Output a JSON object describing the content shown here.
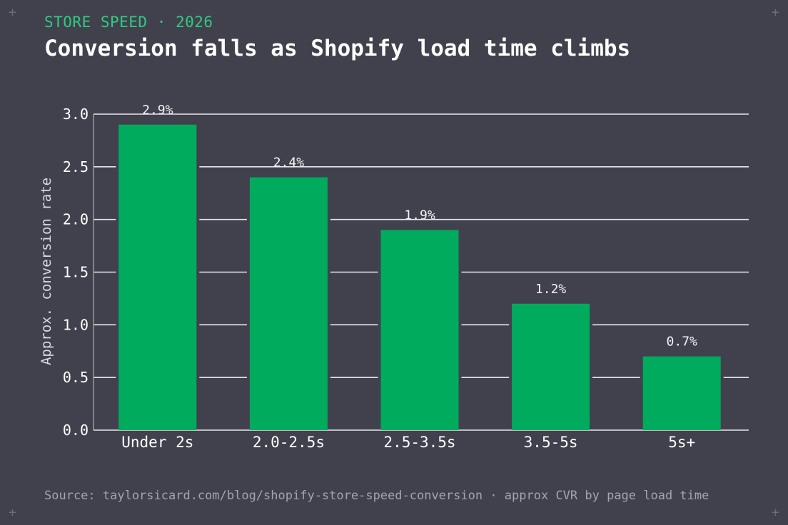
{
  "header": {
    "kicker": "STORE SPEED · 2026",
    "title": "Conversion falls as Shopify load time climbs"
  },
  "footer": {
    "source": "Source: taylorsicard.com/blog/shopify-store-speed-conversion · approx CVR by page load time"
  },
  "decor": {
    "corner_glyph": "+"
  },
  "colors": {
    "background": "#41414d",
    "bar": "#00ab5e",
    "accent": "#2ecc80",
    "grid": "#e6e6ea",
    "text": "#ffffff",
    "muted": "#a4a4ad"
  },
  "chart_data": {
    "type": "bar",
    "categories": [
      "Under 2s",
      "2.0-2.5s",
      "2.5-3.5s",
      "3.5-5s",
      "5s+"
    ],
    "values": [
      2.9,
      2.4,
      1.9,
      1.2,
      0.7
    ],
    "data_labels": [
      "2.9%",
      "2.4%",
      "1.9%",
      "1.2%",
      "0.7%"
    ],
    "ylabel": "Approx. conversion rate",
    "xlabel": "",
    "ylim": [
      0,
      3.0
    ],
    "yticks": [
      0.0,
      0.5,
      1.0,
      1.5,
      2.0,
      2.5,
      3.0
    ],
    "ytick_labels": [
      "0.0",
      "0.5",
      "1.0",
      "1.5",
      "2.0",
      "2.5",
      "3.0"
    ],
    "grid": true,
    "legend": "none"
  }
}
